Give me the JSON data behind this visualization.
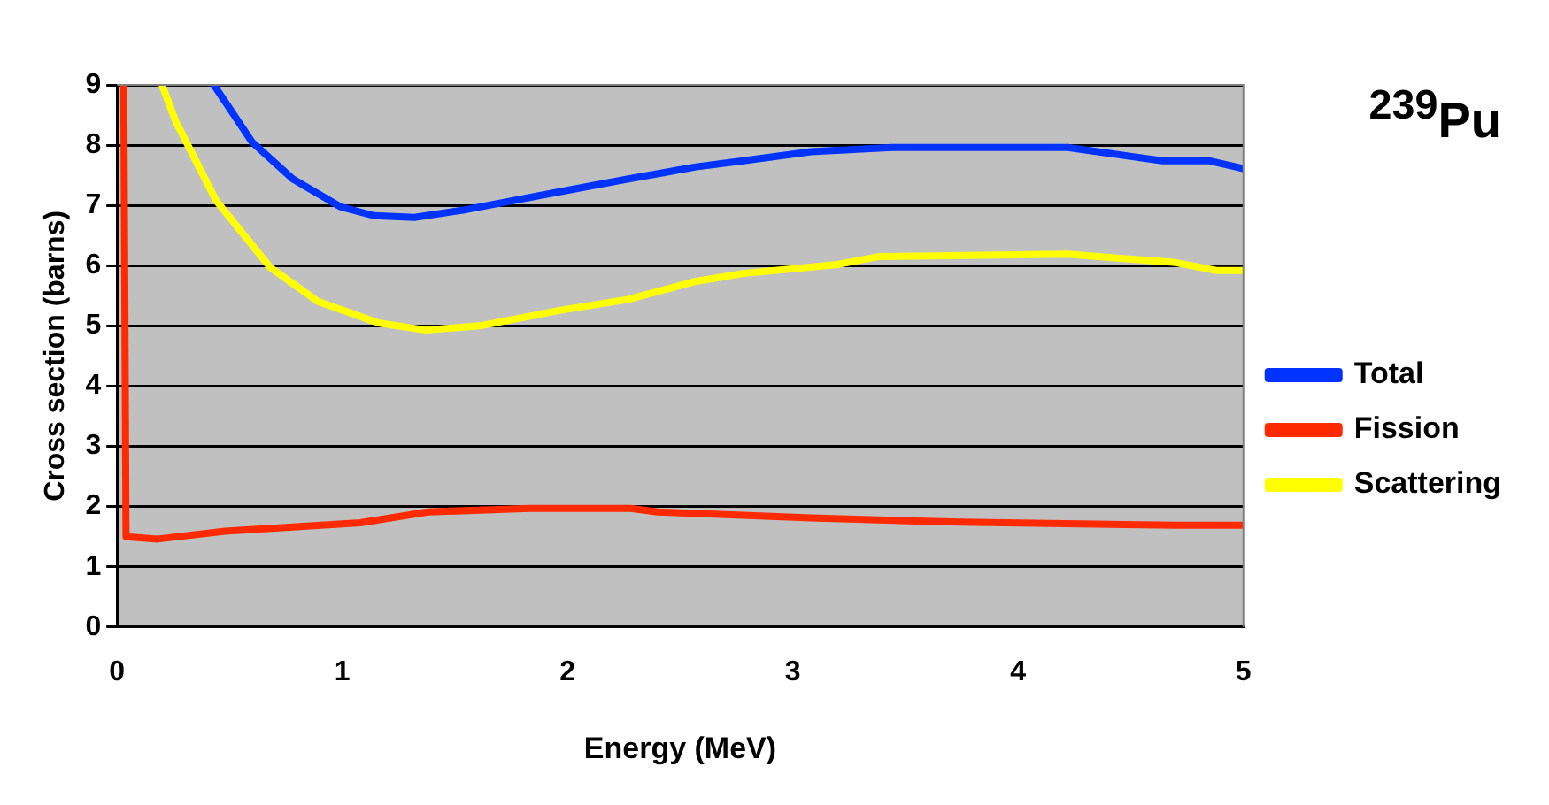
{
  "chart_data": {
    "type": "line",
    "title": "$^{239}$Pu",
    "xlabel": "Energy (MeV)",
    "ylabel": "Cross section (barns)",
    "xlim": [
      0,
      5
    ],
    "ylim": [
      0,
      9
    ],
    "xticks": [
      0,
      1,
      2,
      3,
      4,
      5
    ],
    "yticks": [
      0,
      1,
      2,
      3,
      4,
      5,
      6,
      7,
      8,
      9
    ],
    "grid": "y",
    "legend": "right",
    "marker": "none",
    "line_style": "solid",
    "series": [
      {
        "name": "Total",
        "color": "#0033ff",
        "x": [
          0.43,
          0.6,
          0.78,
          0.99,
          1.14,
          1.32,
          1.55,
          1.97,
          2.27,
          2.57,
          2.78,
          3.08,
          3.44,
          4.22,
          4.64,
          4.85,
          5.0
        ],
        "values": [
          9,
          8.05,
          7.44,
          6.98,
          6.83,
          6.8,
          6.93,
          7.23,
          7.44,
          7.64,
          7.74,
          7.89,
          7.96,
          7.96,
          7.74,
          7.74,
          7.61
        ]
      },
      {
        "name": "Fission",
        "color": "#ff2a00",
        "x": [
          0.03,
          0.04,
          0.18,
          0.48,
          0.78,
          1.08,
          1.38,
          1.83,
          2.28,
          2.4,
          3.08,
          3.74,
          4.7,
          5.0
        ],
        "values": [
          9,
          1.5,
          1.46,
          1.59,
          1.66,
          1.73,
          1.91,
          1.97,
          1.97,
          1.91,
          1.81,
          1.74,
          1.69,
          1.69
        ]
      },
      {
        "name": "Scattering",
        "color": "#ffff00",
        "x": [
          0.2,
          0.26,
          0.44,
          0.68,
          0.89,
          1.16,
          1.37,
          1.61,
          1.97,
          2.27,
          2.57,
          2.78,
          3.2,
          3.38,
          4.22,
          4.7,
          4.88,
          5.0
        ],
        "values": [
          9,
          8.4,
          7.08,
          5.97,
          5.41,
          5.05,
          4.93,
          5.0,
          5.26,
          5.44,
          5.74,
          5.87,
          6.02,
          6.15,
          6.19,
          6.05,
          5.92,
          5.92
        ]
      }
    ]
  }
}
